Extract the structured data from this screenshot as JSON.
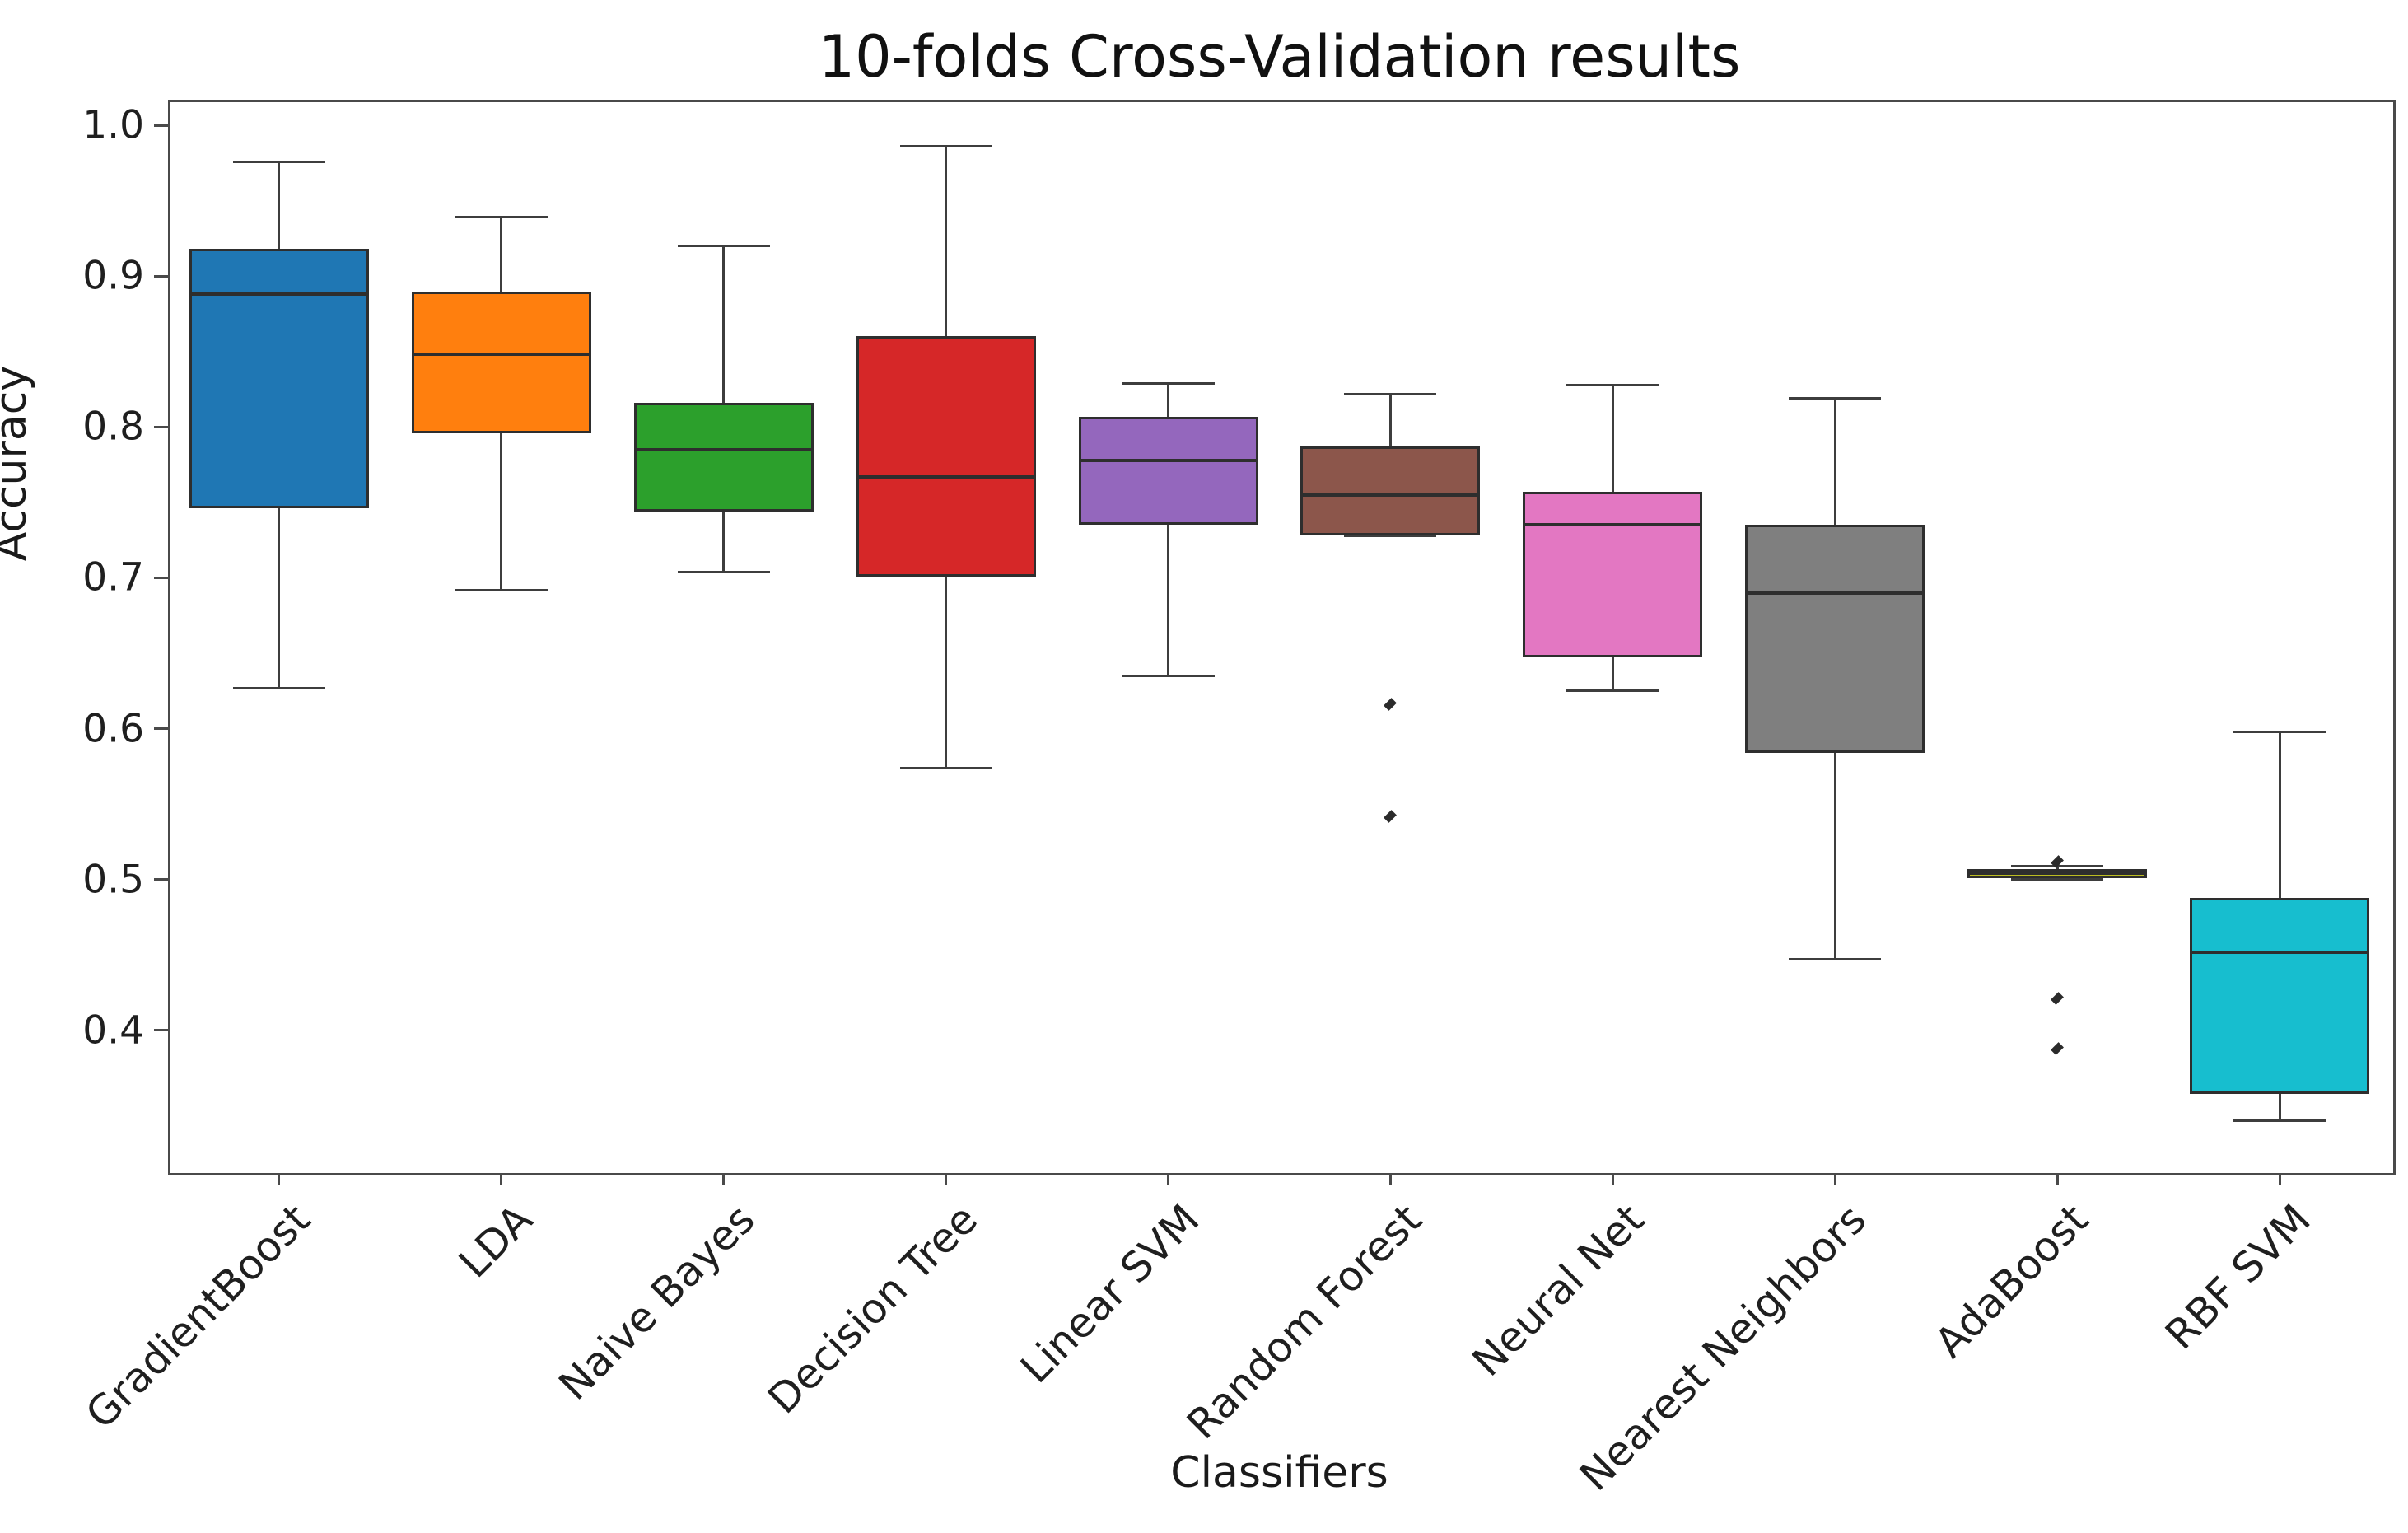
{
  "figure": {
    "background": "#ffffff",
    "spine_color": "#4a4a4a",
    "element_edge_color": "#2e2e2e"
  },
  "chart_data": {
    "type": "box",
    "title": "10-folds Cross-Validation results",
    "xlabel": "Classifiers",
    "ylabel": "Accuracy",
    "ylim": [
      0.307,
      1.017
    ],
    "grid": false,
    "legend": "none",
    "yticks": [
      {
        "value": 1.0,
        "label": "1.0"
      },
      {
        "value": 0.9,
        "label": "0.9"
      },
      {
        "value": 0.8,
        "label": "0.8"
      },
      {
        "value": 0.7,
        "label": "0.7"
      },
      {
        "value": 0.6,
        "label": "0.6"
      },
      {
        "value": 0.5,
        "label": "0.5"
      },
      {
        "value": 0.4,
        "label": "0.4"
      }
    ],
    "categories": [
      "GradientBoost",
      "LDA",
      "Naive Bayes",
      "Decision Tree",
      "Linear SVM",
      "Random Forest",
      "Neural Net",
      "Nearest Neighbors",
      "AdaBoost",
      "RBF SVM"
    ],
    "boxes": [
      {
        "label": "GradientBoost",
        "color": "#1f77b4",
        "whisker_low": 0.627,
        "q1": 0.746,
        "median": 0.888,
        "q3": 0.918,
        "whisker_high": 0.976,
        "outliers": []
      },
      {
        "label": "LDA",
        "color": "#ff7f0e",
        "whisker_low": 0.692,
        "q1": 0.796,
        "median": 0.848,
        "q3": 0.89,
        "whisker_high": 0.939,
        "outliers": []
      },
      {
        "label": "Naive Bayes",
        "color": "#2ca02c",
        "whisker_low": 0.704,
        "q1": 0.744,
        "median": 0.785,
        "q3": 0.816,
        "whisker_high": 0.92,
        "outliers": []
      },
      {
        "label": "Decision Tree",
        "color": "#d62728",
        "whisker_low": 0.574,
        "q1": 0.701,
        "median": 0.767,
        "q3": 0.86,
        "whisker_high": 0.986,
        "outliers": []
      },
      {
        "label": "Linear SVM",
        "color": "#9467bd",
        "whisker_low": 0.635,
        "q1": 0.735,
        "median": 0.778,
        "q3": 0.807,
        "whisker_high": 0.829,
        "outliers": []
      },
      {
        "label": "Random Forest",
        "color": "#8c564b",
        "whisker_low": 0.728,
        "q1": 0.728,
        "median": 0.755,
        "q3": 0.787,
        "whisker_high": 0.822,
        "outliers": [
          0.616,
          0.542
        ]
      },
      {
        "label": "Neural Net",
        "color": "#e377c2",
        "whisker_low": 0.625,
        "q1": 0.647,
        "median": 0.735,
        "q3": 0.757,
        "whisker_high": 0.828,
        "outliers": []
      },
      {
        "label": "Nearest Neighbors",
        "color": "#7f7f7f",
        "whisker_low": 0.447,
        "q1": 0.584,
        "median": 0.69,
        "q3": 0.735,
        "whisker_high": 0.819,
        "outliers": []
      },
      {
        "label": "AdaBoost",
        "color": "#bcbd22",
        "whisker_low": 0.5,
        "q1": 0.501,
        "median": 0.504,
        "q3": 0.507,
        "whisker_high": 0.509,
        "outliers": [
          0.512,
          0.421,
          0.388
        ]
      },
      {
        "label": "RBF SVM",
        "color": "#17becf",
        "whisker_low": 0.34,
        "q1": 0.358,
        "median": 0.452,
        "q3": 0.488,
        "whisker_high": 0.598,
        "outliers": []
      }
    ]
  }
}
